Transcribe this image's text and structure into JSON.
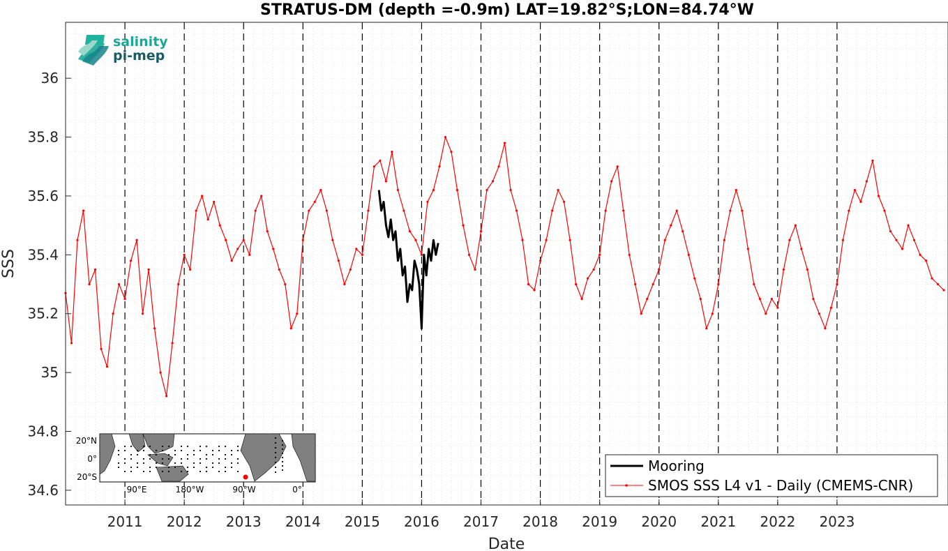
{
  "chart_data": {
    "type": "line",
    "title": "STRATUS-DM (depth =-0.9m) LAT=19.82°S;LON=84.74°W",
    "xlabel": "Date",
    "ylabel": "SSS",
    "xlim": [
      2010.0,
      2024.87
    ],
    "ylim": [
      34.55,
      36.19
    ],
    "x_ticks": [
      2011,
      2012,
      2013,
      2014,
      2015,
      2016,
      2017,
      2018,
      2019,
      2020,
      2021,
      2022,
      2023
    ],
    "x_tick_labels": [
      "2011",
      "2012",
      "2013",
      "2014",
      "2015",
      "2016",
      "2017",
      "2018",
      "2019",
      "2020",
      "2021",
      "2022",
      "2023"
    ],
    "y_ticks": [
      34.6,
      34.8,
      35.0,
      35.2,
      35.4,
      35.6,
      35.8,
      36.0
    ],
    "y_tick_labels": [
      "34.6",
      "34.8",
      "35",
      "35.2",
      "35.4",
      "35.6",
      "35.8",
      "36"
    ],
    "grid": "dotted minor grid",
    "year_markers": "dashed vertical lines at each year",
    "legend_position": "bottom-right",
    "series": [
      {
        "name": "Mooring",
        "color": "#000000",
        "style": "thick line",
        "x": [
          2015.28,
          2015.32,
          2015.36,
          2015.4,
          2015.44,
          2015.48,
          2015.52,
          2015.56,
          2015.6,
          2015.64,
          2015.68,
          2015.72,
          2015.76,
          2015.8,
          2015.84,
          2015.88,
          2015.92,
          2015.96,
          2016.0,
          2016.04,
          2016.08,
          2016.12,
          2016.16,
          2016.2,
          2016.24,
          2016.28
        ],
        "y": [
          35.62,
          35.55,
          35.58,
          35.5,
          35.46,
          35.52,
          35.45,
          35.48,
          35.38,
          35.42,
          35.33,
          35.36,
          35.24,
          35.3,
          35.28,
          35.38,
          35.35,
          35.3,
          35.15,
          35.4,
          35.33,
          35.42,
          35.38,
          35.45,
          35.4,
          35.44
        ]
      },
      {
        "name": "SMOS SSS L4 v1 - Daily (CMEMS-CNR)",
        "color": "#ff0000",
        "style": "thin line with dot markers",
        "x": [
          2010.0,
          2010.1,
          2010.2,
          2010.3,
          2010.4,
          2010.5,
          2010.6,
          2010.7,
          2010.8,
          2010.9,
          2011.0,
          2011.1,
          2011.2,
          2011.3,
          2011.4,
          2011.5,
          2011.6,
          2011.7,
          2011.8,
          2011.9,
          2012.0,
          2012.1,
          2012.2,
          2012.3,
          2012.4,
          2012.5,
          2012.6,
          2012.7,
          2012.8,
          2012.9,
          2013.0,
          2013.1,
          2013.2,
          2013.3,
          2013.4,
          2013.5,
          2013.6,
          2013.7,
          2013.8,
          2013.9,
          2014.0,
          2014.1,
          2014.2,
          2014.3,
          2014.4,
          2014.5,
          2014.6,
          2014.7,
          2014.8,
          2014.9,
          2015.0,
          2015.1,
          2015.2,
          2015.3,
          2015.4,
          2015.5,
          2015.6,
          2015.7,
          2015.8,
          2015.9,
          2016.0,
          2016.1,
          2016.2,
          2016.3,
          2016.4,
          2016.5,
          2016.6,
          2016.7,
          2016.8,
          2016.9,
          2017.0,
          2017.1,
          2017.2,
          2017.3,
          2017.4,
          2017.5,
          2017.6,
          2017.7,
          2017.8,
          2017.9,
          2018.0,
          2018.1,
          2018.2,
          2018.3,
          2018.4,
          2018.5,
          2018.6,
          2018.7,
          2018.8,
          2018.9,
          2019.0,
          2019.1,
          2019.2,
          2019.3,
          2019.4,
          2019.5,
          2019.6,
          2019.7,
          2019.8,
          2019.9,
          2020.0,
          2020.1,
          2020.2,
          2020.3,
          2020.4,
          2020.5,
          2020.6,
          2020.7,
          2020.8,
          2020.9,
          2021.0,
          2021.1,
          2021.2,
          2021.3,
          2021.4,
          2021.5,
          2021.6,
          2021.7,
          2021.8,
          2021.9,
          2022.0,
          2022.1,
          2022.2,
          2022.3,
          2022.4,
          2022.5,
          2022.6,
          2022.7,
          2022.8,
          2022.9,
          2023.0,
          2023.1,
          2023.2,
          2023.3,
          2023.4,
          2023.5,
          2023.6,
          2023.7,
          2023.8,
          2023.9,
          2024.0,
          2024.1,
          2024.2,
          2024.3,
          2024.4,
          2024.5,
          2024.6,
          2024.7,
          2024.8
        ],
        "y": [
          35.27,
          35.1,
          35.45,
          35.55,
          35.3,
          35.35,
          35.08,
          35.02,
          35.2,
          35.3,
          35.25,
          35.38,
          35.45,
          35.2,
          35.35,
          35.15,
          35.0,
          34.92,
          35.1,
          35.3,
          35.4,
          35.35,
          35.55,
          35.6,
          35.52,
          35.58,
          35.5,
          35.45,
          35.38,
          35.42,
          35.45,
          35.4,
          35.55,
          35.6,
          35.48,
          35.42,
          35.35,
          35.3,
          35.15,
          35.2,
          35.45,
          35.55,
          35.58,
          35.62,
          35.55,
          35.45,
          35.38,
          35.3,
          35.35,
          35.42,
          35.4,
          35.55,
          35.7,
          35.72,
          35.65,
          35.75,
          35.62,
          35.55,
          35.48,
          35.45,
          35.4,
          35.58,
          35.62,
          35.7,
          35.8,
          35.75,
          35.62,
          35.5,
          35.4,
          35.35,
          35.48,
          35.62,
          35.65,
          35.7,
          35.78,
          35.62,
          35.55,
          35.45,
          35.3,
          35.28,
          35.38,
          35.45,
          35.55,
          35.62,
          35.58,
          35.45,
          35.3,
          35.25,
          35.32,
          35.35,
          35.4,
          35.55,
          35.65,
          35.7,
          35.55,
          35.4,
          35.3,
          35.2,
          35.25,
          35.3,
          35.35,
          35.45,
          35.5,
          35.55,
          35.48,
          35.4,
          35.32,
          35.25,
          35.15,
          35.2,
          35.3,
          35.45,
          35.55,
          35.62,
          35.55,
          35.42,
          35.3,
          35.25,
          35.2,
          35.25,
          35.22,
          35.35,
          35.45,
          35.5,
          35.42,
          35.35,
          35.25,
          35.2,
          35.15,
          35.22,
          35.3,
          35.45,
          35.55,
          35.62,
          35.58,
          35.65,
          35.72,
          35.6,
          35.55,
          35.48,
          35.45,
          35.42,
          35.5,
          35.45,
          35.4,
          35.38,
          35.32,
          35.3,
          35.28
        ]
      }
    ]
  },
  "logo": {
    "line1": "salinity",
    "line2": "pi-mep"
  },
  "inset_map": {
    "lat_labels": [
      "20°N",
      "0°",
      "20°S"
    ],
    "lon_labels": [
      "90°E",
      "180°W",
      "90°W",
      "0°"
    ],
    "land_color": "#808080",
    "marker_color": "#ff0000"
  }
}
